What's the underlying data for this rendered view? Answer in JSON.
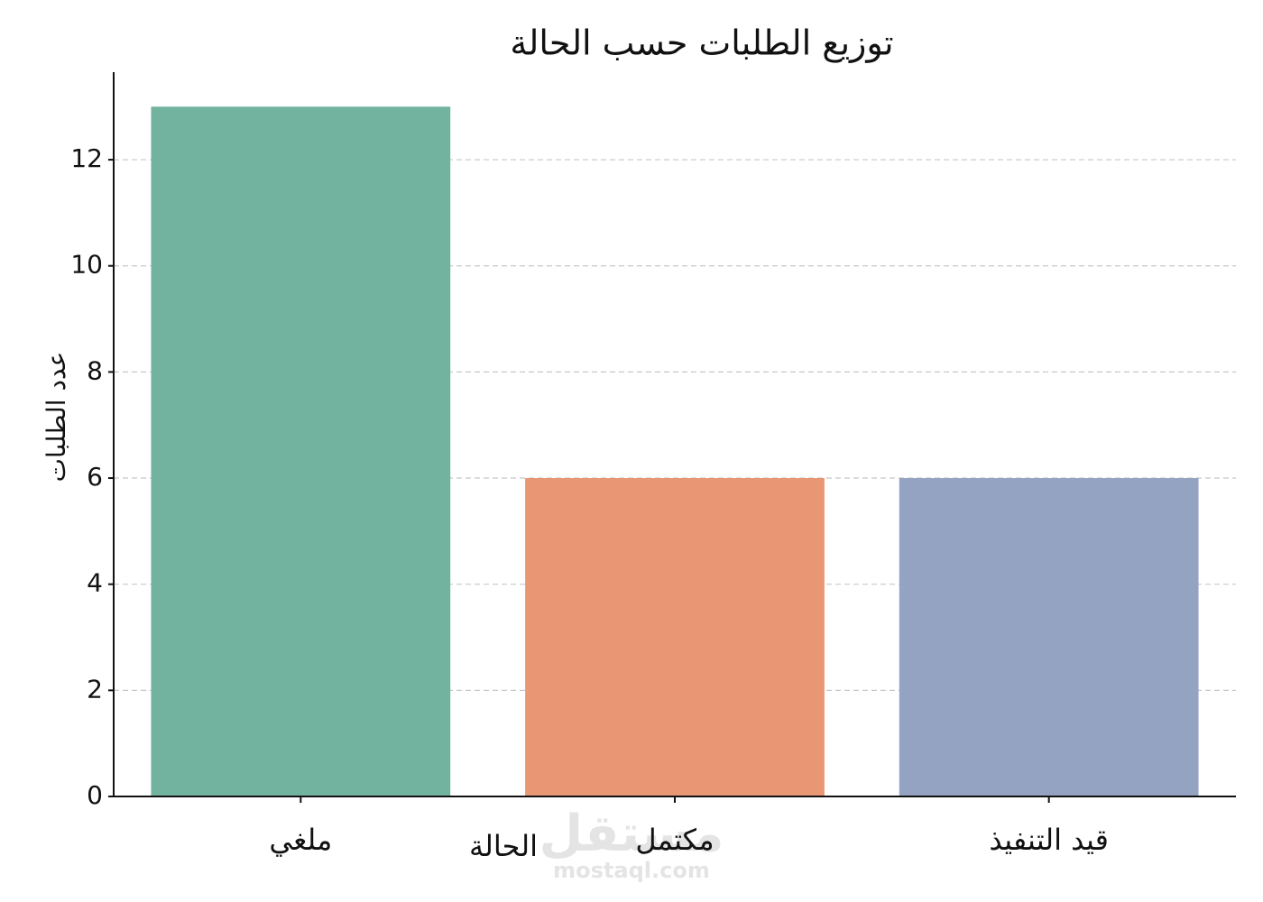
{
  "chart_data": {
    "type": "bar",
    "title": "توزيع الطلبات حسب الحالة",
    "x_label": "الحالة",
    "y_label": "عدد الطلبات",
    "categories": [
      "ملغي",
      "مكتمل",
      "قيد التنفيذ"
    ],
    "values": [
      13,
      6,
      6
    ],
    "colors": [
      "#72b3a0",
      "#e89673",
      "#95a3c3"
    ],
    "ylim": [
      0,
      13.65
    ],
    "yticks": [
      0,
      2,
      4,
      6,
      8,
      10,
      12
    ],
    "grid": true,
    "watermark": [
      "مستقل",
      "mostaql.com"
    ]
  }
}
